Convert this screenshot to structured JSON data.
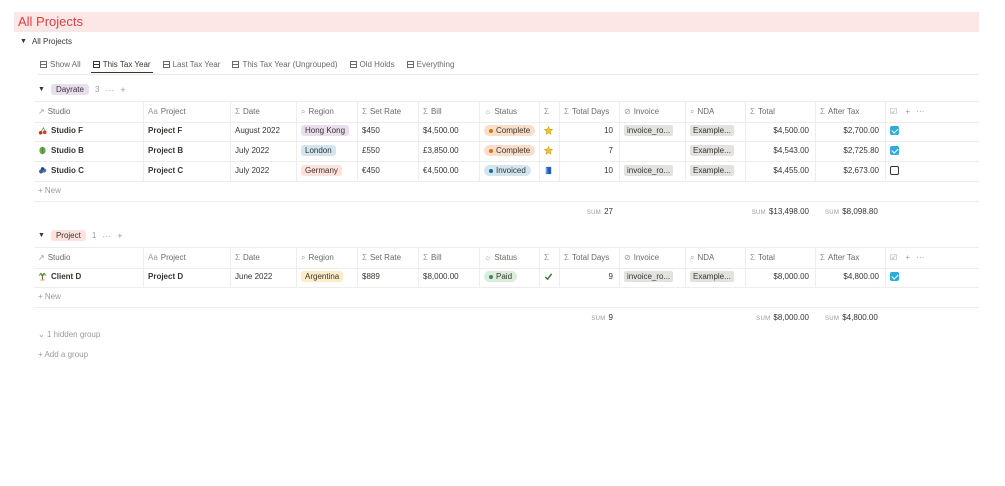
{
  "page": {
    "title": "All Projects"
  },
  "toggle": {
    "label": "All Projects"
  },
  "tabs": [
    {
      "label": "Show All"
    },
    {
      "label": "This Tax Year"
    },
    {
      "label": "Last Tax Year"
    },
    {
      "label": "This Tax Year (Ungrouped)"
    },
    {
      "label": "Old Holds"
    },
    {
      "label": "Everything"
    }
  ],
  "columns": {
    "studio": "Studio",
    "project": "Project",
    "date": "Date",
    "region": "Region",
    "set_rate": "Set Rate",
    "bill": "Bill",
    "status": "Status",
    "sigma": "",
    "total_days": "Total Days",
    "invoice": "Invoice",
    "nda": "NDA",
    "total": "Total",
    "after_tax": "After Tax"
  },
  "groups": [
    {
      "name": "Dayrate",
      "count": "3",
      "tag_color": "#e8deee",
      "rows": [
        {
          "studio": "Studio F",
          "studio_icon": "cherries-icon",
          "project": "Project F",
          "date": "August 2022",
          "region": "Hong Kong",
          "region_color": "#e8deee",
          "set_rate": "$450",
          "bill": "$4,500.00",
          "status": "Complete",
          "status_bg": "#fadec9",
          "status_dot": "#d9730d",
          "sigma_icon": "star-icon",
          "total_days": "10",
          "invoice": "invoice_ro...",
          "nda": "Example...",
          "total": "$4,500.00",
          "after_tax": "$2,700.00",
          "checked": true
        },
        {
          "studio": "Studio B",
          "studio_icon": "leaf-icon",
          "project": "Project B",
          "date": "July 2022",
          "region": "London",
          "region_color": "#d3e5ef",
          "set_rate": "£550",
          "bill": "£3,850.00",
          "status": "Complete",
          "status_bg": "#fadec9",
          "status_dot": "#d9730d",
          "sigma_icon": "star-icon",
          "total_days": "7",
          "invoice": "",
          "nda": "Example...",
          "total": "$4,543.00",
          "after_tax": "$2,725.80",
          "checked": true
        },
        {
          "studio": "Studio C",
          "studio_icon": "blueberries-icon",
          "project": "Project C",
          "date": "July 2022",
          "region": "Germany",
          "region_color": "#ffe2dd",
          "set_rate": "€450",
          "bill": "€4,500.00",
          "status": "Invoiced",
          "status_bg": "#d3e5ef",
          "status_dot": "#0b6e99",
          "sigma_icon": "book-icon",
          "total_days": "10",
          "invoice": "invoice_ro...",
          "nda": "Example...",
          "total": "$4,455.00",
          "after_tax": "$2,673.00",
          "checked": false
        }
      ],
      "new_label": "New",
      "sums": {
        "label": "SUM",
        "total_days": "27",
        "total": "$13,498.00",
        "after_tax": "$8,098.80"
      }
    },
    {
      "name": "Project",
      "count": "1",
      "tag_color": "#ffe2dd",
      "rows": [
        {
          "studio": "Client D",
          "studio_icon": "palm-tree-icon",
          "project": "Project D",
          "date": "June 2022",
          "region": "Argentina",
          "region_color": "#fdecc8",
          "set_rate": "$889",
          "bill": "$8,000.00",
          "status": "Paid",
          "status_bg": "#dbeddb",
          "status_dot": "#448361",
          "sigma_icon": "check-mark-icon",
          "total_days": "9",
          "invoice": "invoice_ro...",
          "nda": "Example...",
          "total": "$8,000.00",
          "after_tax": "$4,800.00",
          "checked": true
        }
      ],
      "new_label": "New",
      "sums": {
        "label": "SUM",
        "total_days": "9",
        "total": "$8,000.00",
        "after_tax": "$4,800.00"
      }
    }
  ],
  "footer": {
    "hidden_groups": "1 hidden group",
    "add_group": "Add a group"
  },
  "colors": {
    "title_bg": "#fde6e6",
    "title_fg": "#e03e3e",
    "checkbox_on": "#2eaadc"
  }
}
